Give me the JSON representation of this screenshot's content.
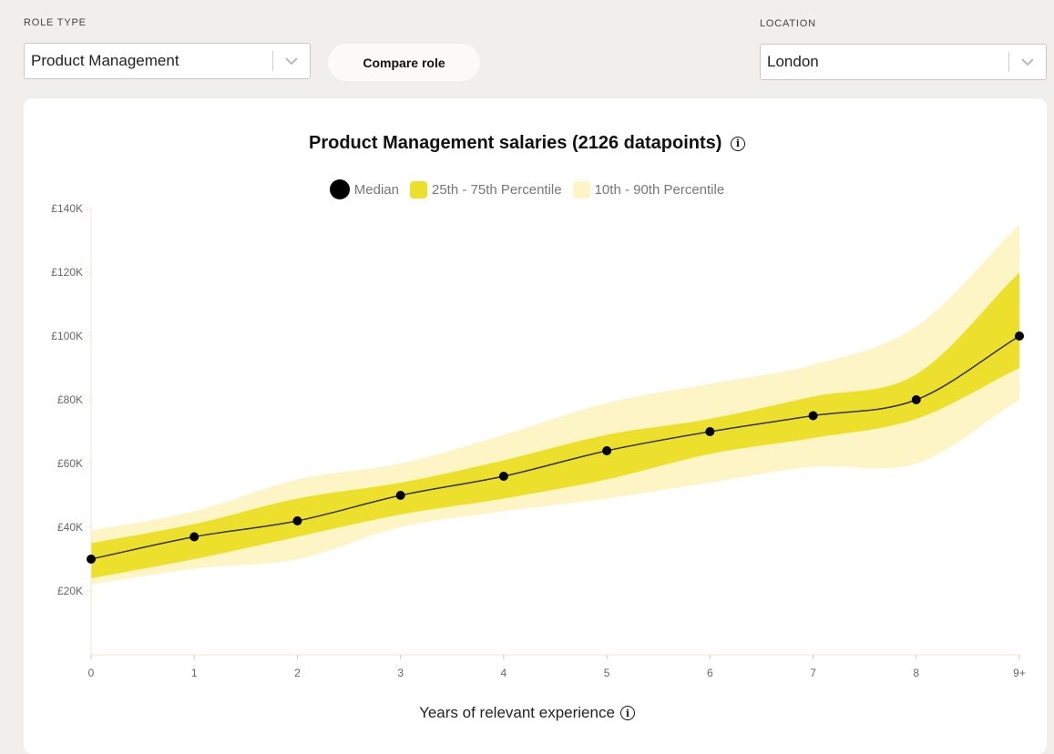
{
  "filters": {
    "role_label": "ROLE TYPE",
    "role_value": "Product Management",
    "compare_label": "Compare role",
    "location_label": "LOCATION",
    "location_value": "London"
  },
  "chart_data": {
    "type": "area",
    "title": "Product Management salaries (2126 datapoints)",
    "xlabel": "Years of relevant experience",
    "ylabel": "",
    "categories": [
      "0",
      "1",
      "2",
      "3",
      "4",
      "5",
      "6",
      "7",
      "8",
      "9+"
    ],
    "ylim": [
      0,
      140000
    ],
    "yticks": [
      {
        "value": 20000,
        "label": "£20K"
      },
      {
        "value": 40000,
        "label": "£40K"
      },
      {
        "value": 60000,
        "label": "£60K"
      },
      {
        "value": 80000,
        "label": "£80K"
      },
      {
        "value": 100000,
        "label": "£100K"
      },
      {
        "value": 120000,
        "label": "£120K"
      },
      {
        "value": 140000,
        "label": "£140K"
      }
    ],
    "series": [
      {
        "name": "Median",
        "values": [
          30000,
          37000,
          42000,
          50000,
          56000,
          64000,
          70000,
          75000,
          80000,
          100000
        ]
      },
      {
        "name": "25th - 75th Percentile",
        "low": [
          24000,
          30000,
          37000,
          44000,
          49000,
          55000,
          63000,
          68000,
          74000,
          90000
        ],
        "high": [
          35000,
          41000,
          49000,
          54000,
          61000,
          69000,
          74000,
          81000,
          88000,
          120000
        ]
      },
      {
        "name": "10th - 90th Percentile",
        "low": [
          22000,
          27000,
          30000,
          40000,
          45000,
          49000,
          54000,
          59000,
          60000,
          80000
        ],
        "high": [
          39000,
          45000,
          55000,
          60000,
          69000,
          79000,
          85000,
          91000,
          103000,
          135000
        ]
      }
    ],
    "grid": false,
    "legend_position": "top-center",
    "colors": {
      "median": "#000000",
      "line": "#333333",
      "band_inner": "#ede02c",
      "band_outer": "#fdf5c6",
      "axis": "#f0eacb"
    }
  }
}
